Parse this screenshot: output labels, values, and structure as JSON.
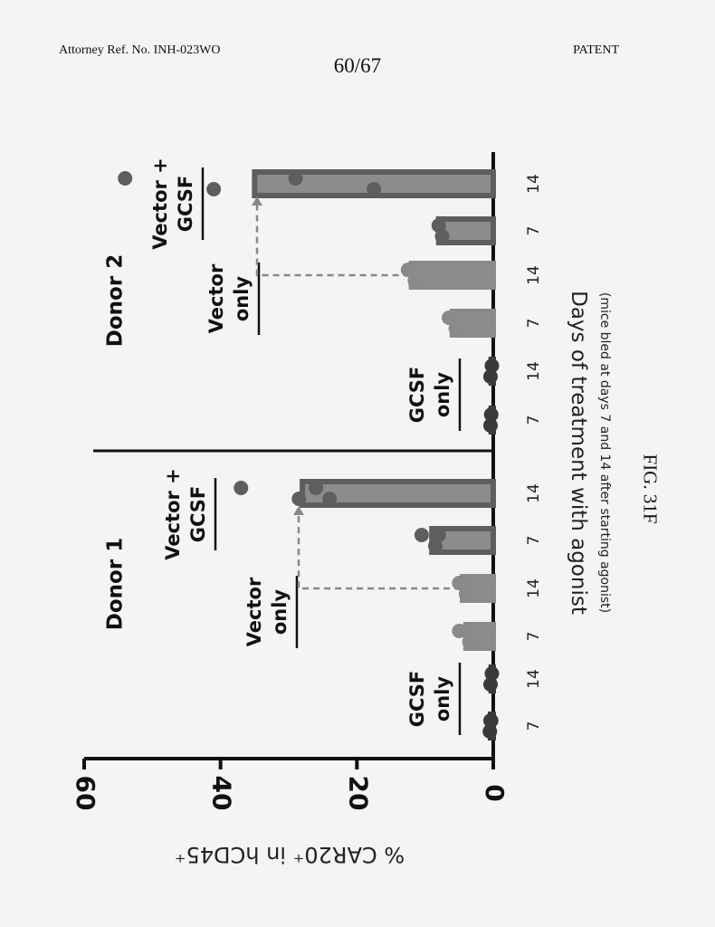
{
  "header": {
    "left": "Attorney Ref. No. INH-023WO",
    "page": "60/67",
    "right": "PATENT"
  },
  "caption": "FIG. 31F",
  "chart_data": {
    "type": "bar",
    "orientation": "horizontal-bars (page rotated 90°)",
    "ylabel": "% CAR20⁺ in hCD45⁺",
    "xlabel": "Days of treatment with agonist",
    "xsublabel": "(mice bled at days 7 and 14 after starting agonist)",
    "ylim": [
      0,
      60
    ],
    "yticks": [
      "0",
      "20",
      "40",
      "60"
    ],
    "colors": {
      "gcsf_only": "#3a3a3a",
      "vector_only": "#8a8a8a",
      "vector_gcsf": "#5e5e5e",
      "bar_fill": "#8c8c8c"
    },
    "panels": [
      {
        "name": "Donor 1",
        "groups": [
          {
            "label": [
              "GCSF",
              "only"
            ],
            "key": "gcsf_only",
            "bars": [
              {
                "day": "7",
                "value": 0.4,
                "points": [
                  0.3,
                  0.5,
                  0.4
                ]
              },
              {
                "day": "14",
                "value": 0.3,
                "points": [
                  0.2,
                  0.4
                ]
              }
            ]
          },
          {
            "label": [
              "Vector",
              "only"
            ],
            "key": "vector_only",
            "bars": [
              {
                "day": "7",
                "value": 4,
                "points": [
                  5,
                  3.5,
                  4
                ]
              },
              {
                "day": "14",
                "value": 4.5,
                "points": [
                  5,
                  4,
                  4.5
                ]
              }
            ]
          },
          {
            "label": [
              "Vector +",
              "GCSF"
            ],
            "key": "vector_gcsf",
            "bars": [
              {
                "day": "7",
                "value": 9,
                "points": [
                  10.5,
                  8.5,
                  8
                ]
              },
              {
                "day": "14",
                "value": 28,
                "points": [
                  37,
                  28.5,
                  26,
                  24
                ]
              }
            ]
          }
        ]
      },
      {
        "name": "Donor 2",
        "groups": [
          {
            "label": [
              "GCSF",
              "only"
            ],
            "key": "gcsf_only",
            "bars": [
              {
                "day": "7",
                "value": 0.3,
                "points": [
                  0.3,
                  0.4
                ]
              },
              {
                "day": "14",
                "value": 0.3,
                "points": [
                  0.2,
                  0.4
                ]
              }
            ]
          },
          {
            "label": [
              "Vector",
              "only"
            ],
            "key": "vector_only",
            "bars": [
              {
                "day": "7",
                "value": 6,
                "points": [
                  6.5,
                  5.5
                ]
              },
              {
                "day": "14",
                "value": 12,
                "points": [
                  12.5,
                  11.5
                ]
              }
            ]
          },
          {
            "label": [
              "Vector +",
              "GCSF"
            ],
            "key": "vector_gcsf",
            "bars": [
              {
                "day": "7",
                "value": 8,
                "points": [
                  8,
                  7.5
                ]
              },
              {
                "day": "14",
                "value": 35,
                "points": [
                  54,
                  41,
                  29,
                  17.5
                ]
              }
            ]
          }
        ]
      }
    ]
  }
}
